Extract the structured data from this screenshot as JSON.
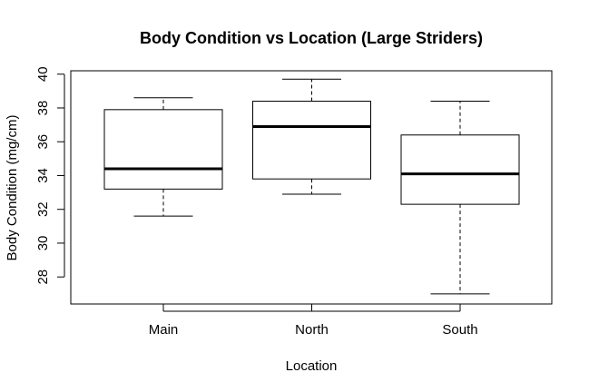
{
  "chart_data": {
    "type": "boxplot",
    "title": "Body Condition vs Location (Large Striders)",
    "xlabel": "Location",
    "ylabel": "Body Condition (mg/cm)",
    "ylim": [
      26.4,
      40.2
    ],
    "yticks": [
      "28",
      "30",
      "32",
      "34",
      "36",
      "38",
      "40"
    ],
    "grid": false,
    "categories": [
      "Main",
      "North",
      "South"
    ],
    "boxes": [
      {
        "category": "Main",
        "min": 31.6,
        "q1": 33.2,
        "median": 34.4,
        "q3": 37.9,
        "max": 38.6
      },
      {
        "category": "North",
        "min": 32.9,
        "q1": 33.8,
        "median": 36.9,
        "q3": 38.4,
        "max": 39.7
      },
      {
        "category": "South",
        "min": 27.0,
        "q1": 32.3,
        "median": 34.1,
        "q3": 36.4,
        "max": 38.4
      }
    ]
  }
}
